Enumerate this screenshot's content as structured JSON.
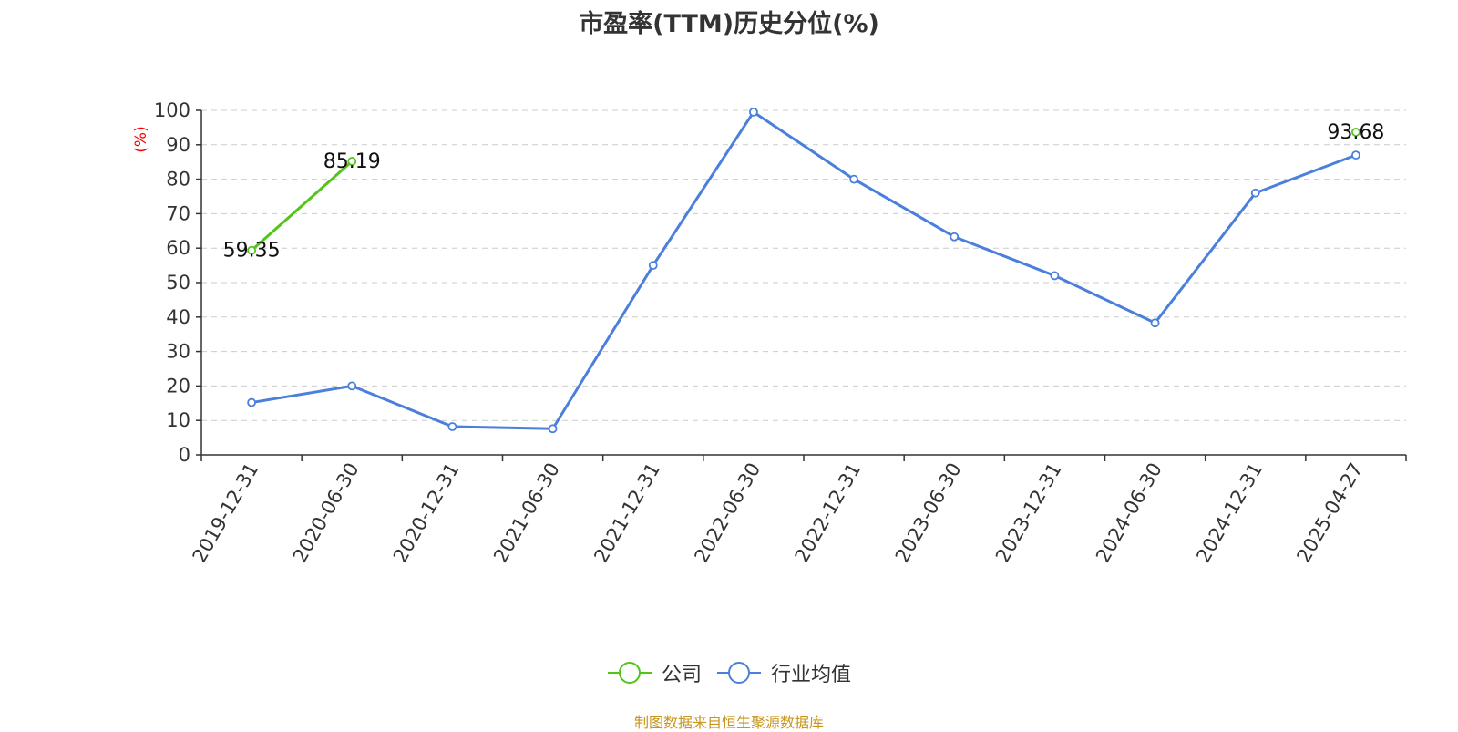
{
  "chart_data": {
    "type": "line",
    "title": "市盈率(TTM)历史分位(%)",
    "ylabel": "(%)",
    "xlabel": "",
    "ylim": [
      0,
      100
    ],
    "yticks": [
      0,
      10,
      20,
      30,
      40,
      50,
      60,
      70,
      80,
      90,
      100
    ],
    "grid": true,
    "legend_position": "bottom",
    "categories": [
      "2019-12-31",
      "2020-06-30",
      "2020-12-31",
      "2021-06-30",
      "2021-12-31",
      "2022-06-30",
      "2022-12-31",
      "2023-06-30",
      "2023-12-31",
      "2024-06-30",
      "2024-12-31",
      "2025-04-27"
    ],
    "series": [
      {
        "name": "公司",
        "color": "#52c41a",
        "values": [
          59.35,
          85.19,
          null,
          null,
          null,
          null,
          null,
          null,
          null,
          null,
          null,
          93.68
        ],
        "labeled_points": [
          0,
          1,
          11
        ]
      },
      {
        "name": "行业均值",
        "color": "#4a7fdc",
        "values": [
          15.2,
          20.0,
          8.2,
          7.6,
          55.0,
          99.5,
          80.0,
          63.3,
          52.0,
          38.3,
          76.0,
          87.0
        ],
        "labeled_points": []
      }
    ]
  },
  "footer": {
    "source": "制图数据来自恒生聚源数据库"
  }
}
